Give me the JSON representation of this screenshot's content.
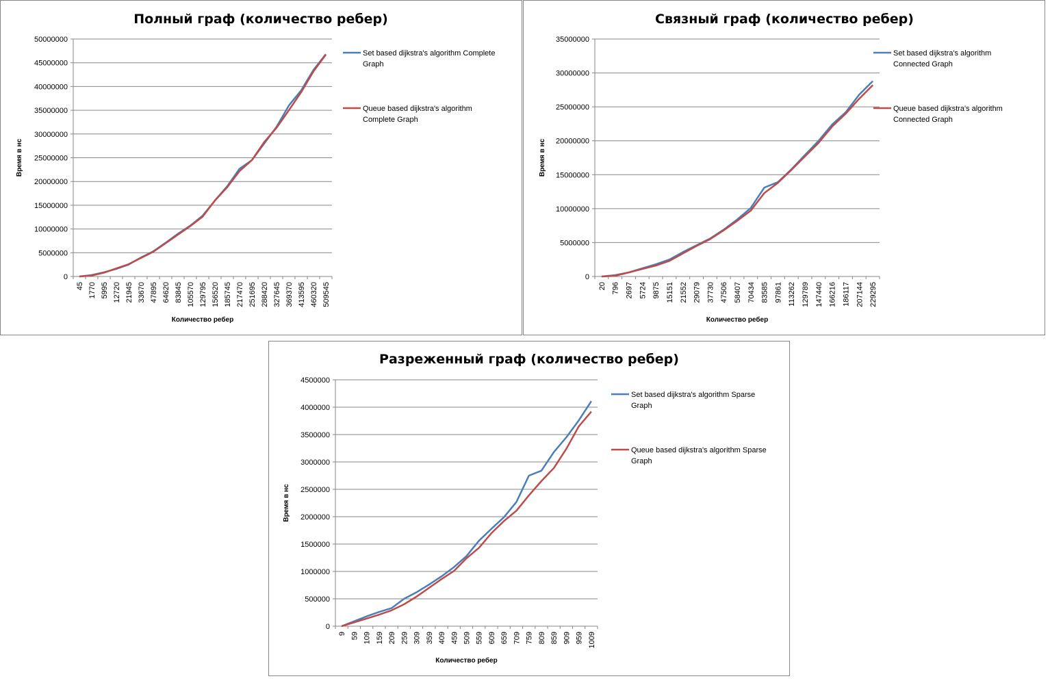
{
  "chart_data": [
    {
      "type": "line",
      "title": "Полный граф (количество ребер)",
      "xlabel": "Количество  ребер",
      "ylabel": "Время в нс",
      "ylim": [
        0,
        50000000
      ],
      "ytick_labels": [
        "0",
        "5000000",
        "10000000",
        "15000000",
        "20000000",
        "25000000",
        "30000000",
        "35000000",
        "40000000",
        "45000000",
        "50000000"
      ],
      "categories": [
        "45",
        "1770",
        "5995",
        "12720",
        "21945",
        "33670",
        "47895",
        "64620",
        "83845",
        "105570",
        "129795",
        "156520",
        "185745",
        "217470",
        "251695",
        "288420",
        "327645",
        "369370",
        "413595",
        "460320",
        "509545"
      ],
      "series": [
        {
          "name": "Set based dijkstra's algorithm Complete Graph",
          "legend_lines": [
            "Set based dijkstra's algorithm Complete",
            "Graph"
          ],
          "color": "#4a7ebb",
          "values": [
            0,
            300000,
            900000,
            1600000,
            2500000,
            4000000,
            5300000,
            7100000,
            9000000,
            10700000,
            12800000,
            16000000,
            19000000,
            22700000,
            24500000,
            28000000,
            31500000,
            36000000,
            39200000,
            43500000,
            46800000
          ]
        },
        {
          "name": "Queue based dijkstra's algorithm Complete Graph",
          "legend_lines": [
            "Queue based dijkstra's algorithm",
            "Complete Graph"
          ],
          "color": "#be4b48",
          "values": [
            0,
            200000,
            800000,
            1700000,
            2600000,
            3900000,
            5200000,
            7000000,
            8800000,
            10600000,
            12600000,
            16000000,
            18800000,
            22200000,
            24500000,
            28300000,
            31300000,
            35000000,
            38800000,
            43200000,
            46700000
          ]
        }
      ]
    },
    {
      "type": "line",
      "title": "Связный граф (количество ребер)",
      "xlabel": "Количество  ребер",
      "ylabel": "Время в нс",
      "ylim": [
        0,
        35000000
      ],
      "ytick_labels": [
        "0",
        "5000000",
        "10000000",
        "15000000",
        "20000000",
        "25000000",
        "30000000",
        "35000000"
      ],
      "categories": [
        "20",
        "796",
        "2697",
        "5724",
        "9875",
        "15151",
        "21552",
        "29079",
        "37730",
        "47506",
        "58407",
        "70434",
        "83585",
        "97861",
        "113262",
        "129789",
        "147440",
        "166216",
        "186117",
        "207144",
        "229295"
      ],
      "series": [
        {
          "name": "Set based dijkstra's algorithm Connected Graph",
          "legend_lines": [
            "Set based dijkstra's algorithm",
            "Connected Graph"
          ],
          "color": "#4a7ebb",
          "values": [
            0,
            200000,
            600000,
            1200000,
            1800000,
            2500000,
            3600000,
            4600000,
            5600000,
            6900000,
            8400000,
            10100000,
            13100000,
            13900000,
            15800000,
            17900000,
            20000000,
            22400000,
            24200000,
            26800000,
            28800000
          ]
        },
        {
          "name": "Queue based dijkstra's algorithm Connected Graph",
          "legend_lines": [
            "Queue based dijkstra's algorithm",
            "Connected Graph"
          ],
          "color": "#be4b48",
          "values": [
            0,
            100000,
            600000,
            1100000,
            1600000,
            2300000,
            3400000,
            4500000,
            5500000,
            6800000,
            8200000,
            9700000,
            12300000,
            13800000,
            15700000,
            17700000,
            19700000,
            22100000,
            24000000,
            26200000,
            28200000
          ]
        }
      ]
    },
    {
      "type": "line",
      "title": "Разреженный граф (количество ребер)",
      "xlabel": "Количество  ребер",
      "ylabel": "Время в нс",
      "ylim": [
        0,
        4500000
      ],
      "ytick_labels": [
        "0",
        "500000",
        "1000000",
        "1500000",
        "2000000",
        "2500000",
        "3000000",
        "3500000",
        "4000000",
        "4500000"
      ],
      "categories": [
        "9",
        "59",
        "109",
        "159",
        "209",
        "259",
        "309",
        "359",
        "409",
        "459",
        "509",
        "559",
        "609",
        "659",
        "709",
        "759",
        "809",
        "859",
        "909",
        "959",
        "1009"
      ],
      "series": [
        {
          "name": "Set based dijkstra's algorithm Sparse Graph",
          "legend_lines": [
            "Set based dijkstra's algorithm Sparse",
            "Graph"
          ],
          "color": "#4a7ebb",
          "values": [
            0,
            90000,
            180000,
            260000,
            330000,
            500000,
            620000,
            760000,
            910000,
            1080000,
            1280000,
            1560000,
            1780000,
            1990000,
            2270000,
            2750000,
            2840000,
            3180000,
            3450000,
            3760000,
            4110000
          ]
        },
        {
          "name": "Queue based dijkstra's algorithm Sparse Graph",
          "legend_lines": [
            "Queue based dijkstra's algorithm Sparse",
            "Graph"
          ],
          "color": "#be4b48",
          "values": [
            0,
            70000,
            140000,
            210000,
            290000,
            400000,
            540000,
            700000,
            860000,
            1010000,
            1240000,
            1430000,
            1700000,
            1920000,
            2110000,
            2390000,
            2650000,
            2890000,
            3240000,
            3650000,
            3920000
          ]
        }
      ]
    }
  ]
}
